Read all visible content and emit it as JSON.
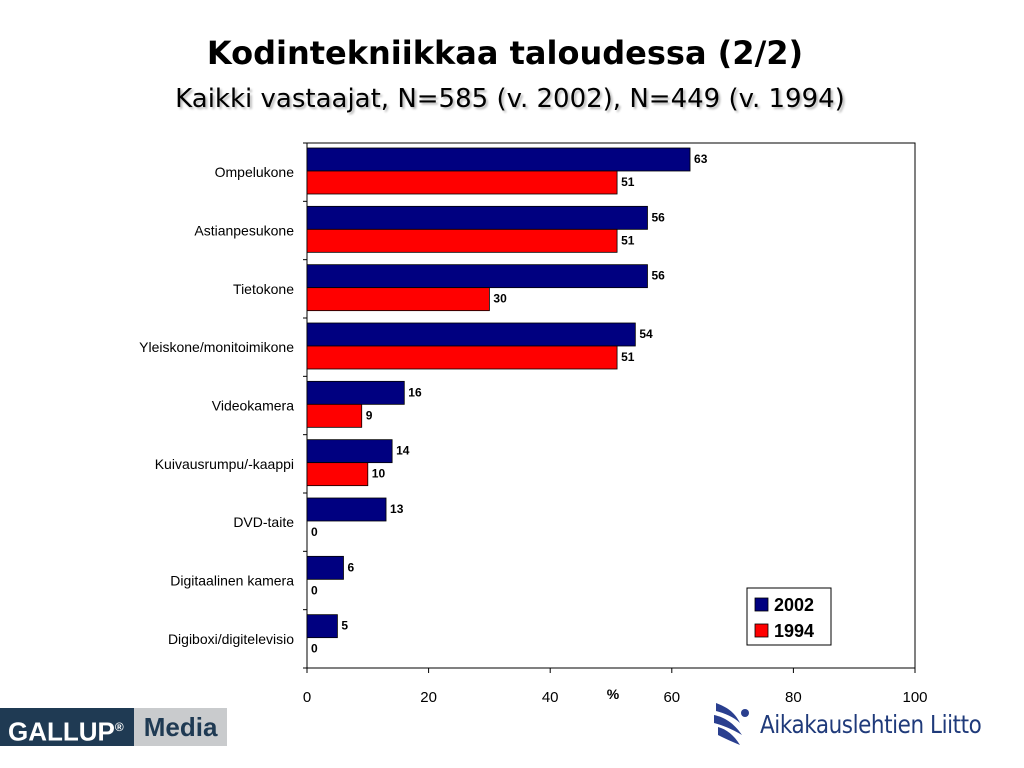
{
  "title": "Kodintekniikkaa taloudessa (2/2)",
  "subtitle": "Kaikki vastaajat, N=585 (v. 2002), N=449 (v. 1994)",
  "chart_data": {
    "type": "bar",
    "orientation": "horizontal",
    "title": "",
    "xlabel": "%",
    "ylabel": "",
    "xlim": [
      0,
      100
    ],
    "xticks": [
      0,
      20,
      40,
      60,
      80,
      100
    ],
    "grid": false,
    "legend_position": "bottom-right",
    "categories": [
      "Ompelukone",
      "Astianpesukone",
      "Tietokone",
      "Yleiskone/monitoimikone",
      "Videokamera",
      "Kuivausrumpu/-kaappi",
      "DVD-taite",
      "Digitaalinen kamera",
      "Digiboxi/digitelevisio"
    ],
    "series": [
      {
        "name": "2002",
        "color": "#000080",
        "values": [
          63,
          56,
          56,
          54,
          16,
          14,
          13,
          6,
          5
        ]
      },
      {
        "name": "1994",
        "color": "#ff0000",
        "values": [
          51,
          51,
          30,
          51,
          9,
          10,
          0,
          0,
          0
        ]
      }
    ]
  },
  "logos": {
    "gallup_left": "GALLUP",
    "gallup_mark": "®",
    "gallup_right": "Media",
    "aikakauslehtien": "Aikakauslehtien Liitto"
  }
}
